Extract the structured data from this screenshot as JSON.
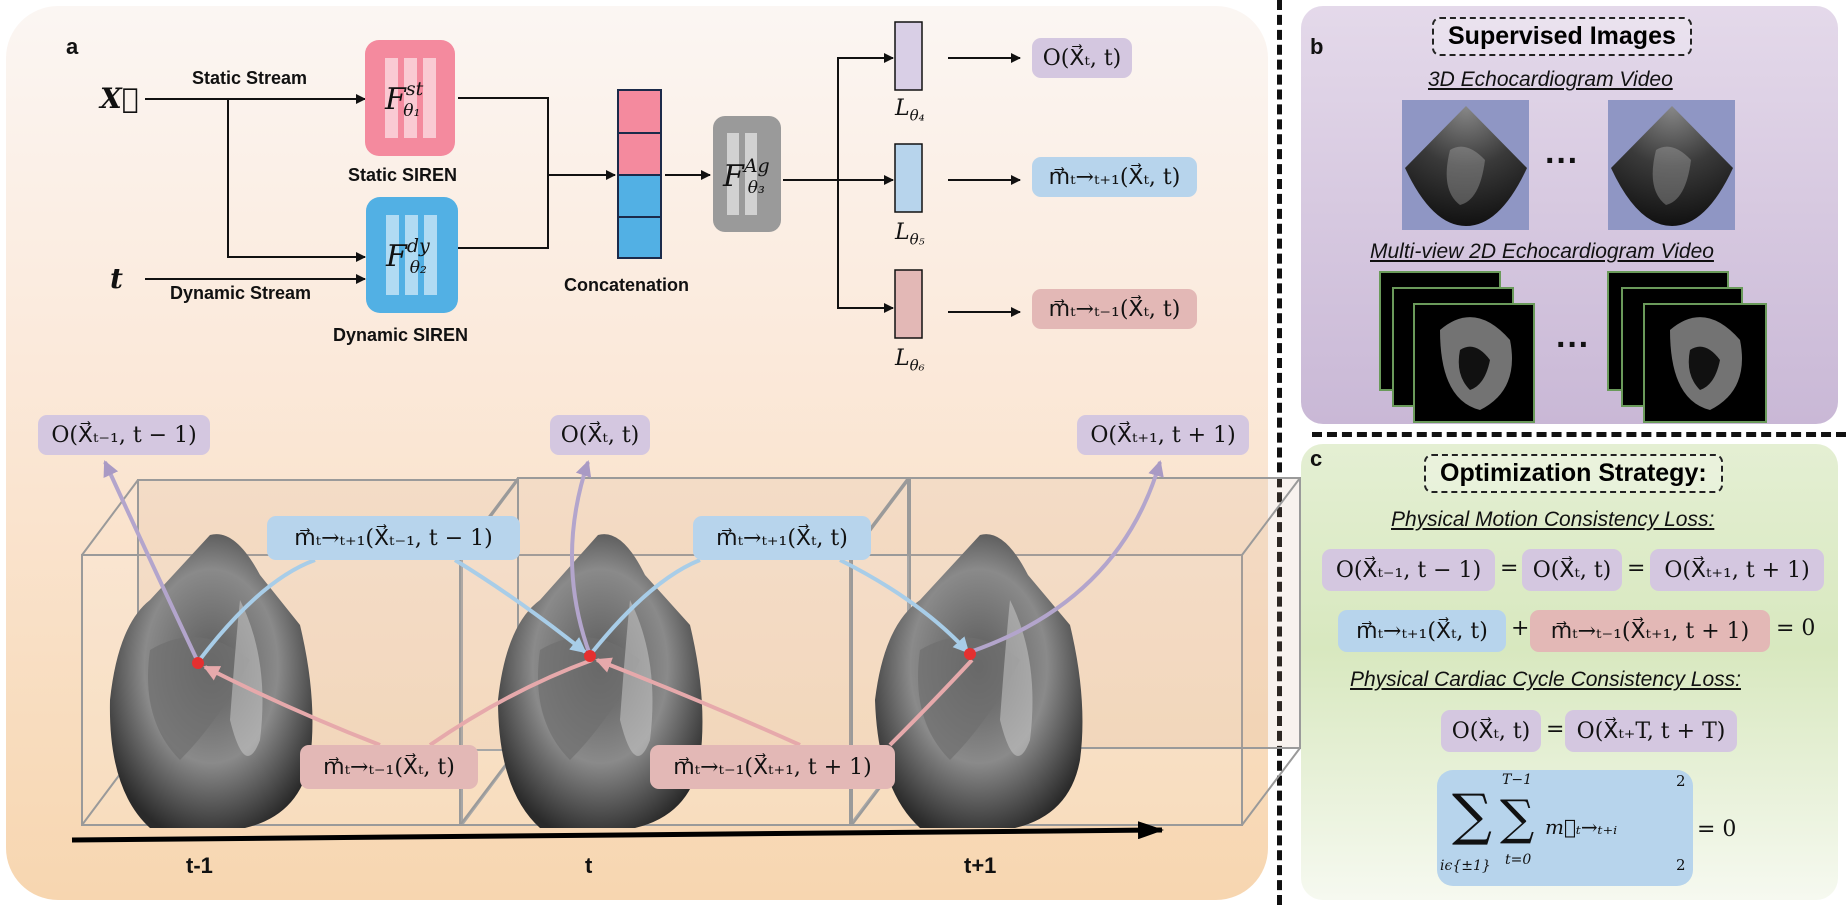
{
  "panels": {
    "a": "a",
    "b": "b",
    "c": "c"
  },
  "panel_a": {
    "input_x": "X⃗",
    "input_t": "t",
    "static_stream": "Static Stream",
    "dynamic_stream": "Dynamic Stream",
    "static_siren": "Static SIREN",
    "dynamic_siren": "Dynamic SIREN",
    "concatenation": "Concatenation",
    "f_static": "F",
    "f_static_sup": "st",
    "f_static_sub": "θ₁",
    "f_dynamic": "F",
    "f_dynamic_sup": "dy",
    "f_dynamic_sub": "θ₂",
    "f_agg": "F",
    "f_agg_sup": "Ag",
    "f_agg_sub": "θ₃",
    "l4": "L",
    "l4_sub": "θ₄",
    "l5": "L",
    "l5_sub": "θ₅",
    "l6": "L",
    "l6_sub": "θ₆",
    "out_occ": "O(X⃗ₜ, t)",
    "out_fwd": "m⃗ₜ→ₜ₊₁(X⃗ₜ, t)",
    "out_bwd": "m⃗ₜ→ₜ₋₁(X⃗ₜ, t)",
    "occ_prev": "O(X⃗ₜ₋₁, t − 1)",
    "occ_curr": "O(X⃗ₜ, t)",
    "occ_next": "O(X⃗ₜ₊₁, t + 1)",
    "fwd_prev": "m⃗ₜ→ₜ₊₁(X⃗ₜ₋₁, t − 1)",
    "fwd_curr": "m⃗ₜ→ₜ₊₁(X⃗ₜ, t)",
    "bwd_curr": "m⃗ₜ→ₜ₋₁(X⃗ₜ, t)",
    "bwd_next": "m⃗ₜ→ₜ₋₁(X⃗ₜ₊₁, t + 1)",
    "time_labels": [
      "t-1",
      "t",
      "t+1"
    ]
  },
  "panel_b": {
    "heading": "Supervised Images",
    "video3d": "3D Echocardiogram Video",
    "video2d": "Multi-view 2D Echocardiogram Video",
    "ellipsis": "···"
  },
  "panel_c": {
    "heading": "Optimization Strategy:",
    "loss1": "Physical Motion Consistency Loss:",
    "loss2": "Physical Cardiac Cycle Consistency Loss:",
    "eq1": [
      "O(X⃗ₜ₋₁, t − 1)",
      "O(X⃗ₜ, t)",
      "O(X⃗ₜ₊₁, t + 1)"
    ],
    "eq_sign": "=",
    "plus": "+",
    "eq2": [
      "m⃗ₜ→ₜ₊₁(X⃗ₜ, t)",
      "m⃗ₜ→ₜ₋₁(X⃗ₜ₊₁, t + 1)"
    ],
    "zero": "= 0",
    "eq3": [
      "O(X⃗ₜ, t)",
      "O(X⃗ₜ₊T, t + T)"
    ],
    "sum_outer": "∑",
    "sum_outer_sub": "iϵ{±1}",
    "sum_inner": "∑",
    "sum_inner_sup": "T−1",
    "sum_inner_sub": "t=0",
    "sum_term": "m⃗ₜ→ₜ₊ᵢ",
    "norm_sup": "2",
    "norm_sub": "2"
  },
  "colors": {
    "occupancy": "#d4c7e0",
    "forward": "#b7d4ec",
    "backward": "#e3b8b6",
    "static": "#f48a9e",
    "dynamic": "#52b0e4",
    "aggregator": "#9a9a9a"
  }
}
